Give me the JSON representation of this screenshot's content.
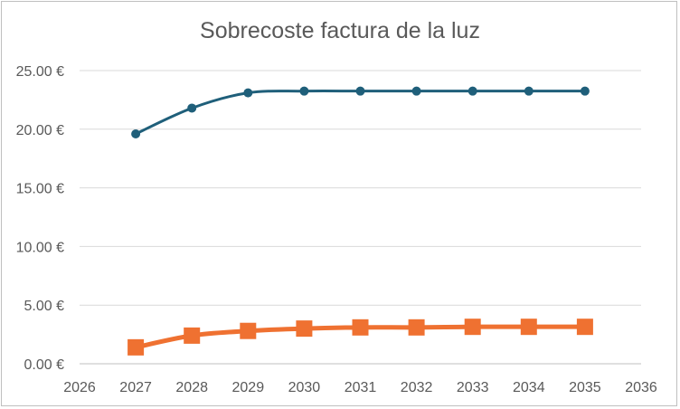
{
  "chart_data": {
    "type": "line",
    "title": "Sobrecoste factura de la luz",
    "xlabel": "",
    "ylabel": "",
    "xlim": [
      2026,
      2036
    ],
    "ylim": [
      0,
      25
    ],
    "x_ticks": [
      "2026",
      "2027",
      "2028",
      "2029",
      "2030",
      "2031",
      "2032",
      "2033",
      "2034",
      "2035",
      "2036"
    ],
    "y_ticks": [
      "0.00 €",
      "5.00 €",
      "10.00 €",
      "15.00 €",
      "20.00 €",
      "25.00 €"
    ],
    "grid": "horizontal",
    "legend": "none",
    "smoothed": true,
    "x": [
      2027,
      2028,
      2029,
      2030,
      2031,
      2032,
      2033,
      2034,
      2035
    ],
    "series": [
      {
        "color": "#1f5f7a",
        "marker": "circle",
        "values": [
          19.6,
          21.8,
          23.1,
          23.25,
          23.25,
          23.25,
          23.25,
          23.25,
          23.25
        ]
      },
      {
        "color": "#ef7131",
        "marker": "square",
        "values": [
          1.4,
          2.4,
          2.8,
          3.0,
          3.1,
          3.1,
          3.15,
          3.15,
          3.15
        ]
      }
    ]
  }
}
